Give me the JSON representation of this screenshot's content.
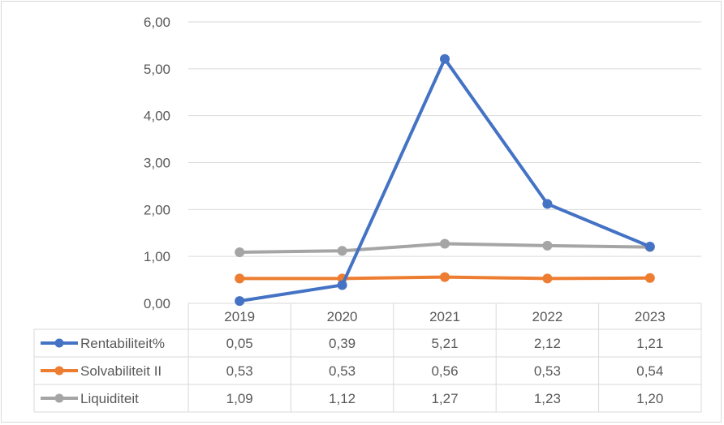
{
  "chart_data": {
    "type": "line",
    "title": "",
    "xlabel": "",
    "ylabel": "",
    "ylim": [
      0,
      6
    ],
    "yticks": [
      "0,00",
      "1,00",
      "2,00",
      "3,00",
      "4,00",
      "5,00",
      "6,00"
    ],
    "grid": true,
    "legend": "data-table",
    "categories": [
      "2019",
      "2020",
      "2021",
      "2022",
      "2023"
    ],
    "series": [
      {
        "name": "Rentabiliteit%",
        "color": "#4472c4",
        "values": [
          0.05,
          0.39,
          5.21,
          2.12,
          1.21
        ],
        "labels": [
          "0,05",
          "0,39",
          "5,21",
          "2,12",
          "1,21"
        ]
      },
      {
        "name": "Solvabiliteit II",
        "color": "#ed7d31",
        "values": [
          0.53,
          0.53,
          0.56,
          0.53,
          0.54
        ],
        "labels": [
          "0,53",
          "0,53",
          "0,56",
          "0,53",
          "0,54"
        ]
      },
      {
        "name": "Liquiditeit",
        "color": "#a5a5a5",
        "values": [
          1.09,
          1.12,
          1.27,
          1.23,
          1.2
        ],
        "labels": [
          "1,09",
          "1,12",
          "1,27",
          "1,23",
          "1,20"
        ]
      }
    ]
  }
}
